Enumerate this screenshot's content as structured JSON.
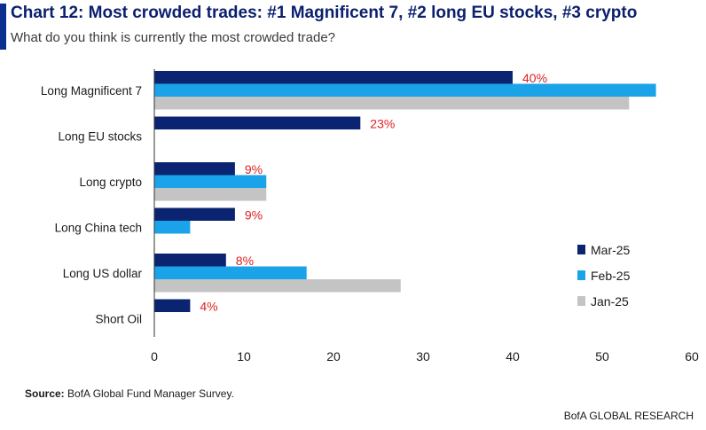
{
  "header": {
    "title": "Chart 12: Most crowded trades: #1 Magnificent 7, #2 long EU stocks, #3 crypto",
    "subtitle": "What do you think is currently the most crowded trade?"
  },
  "footer": {
    "source_label": "Source:",
    "source_text": " BofA Global Fund Manager Survey.",
    "credit": "BofA GLOBAL RESEARCH"
  },
  "chart_data": {
    "type": "bar",
    "orientation": "horizontal",
    "categories": [
      "Long Magnificent 7",
      "Long EU stocks",
      "Long crypto",
      "Long China tech",
      "Long US dollar",
      "Short Oil"
    ],
    "series": [
      {
        "name": "Mar-25",
        "color": "#0a2472",
        "values": [
          40,
          23,
          9,
          9,
          8,
          4
        ]
      },
      {
        "name": "Feb-25",
        "color": "#1aa3e8",
        "values": [
          56,
          null,
          12.5,
          4,
          17,
          null
        ]
      },
      {
        "name": "Jan-25",
        "color": "#c4c4c4",
        "values": [
          53,
          null,
          12.5,
          null,
          27.5,
          null
        ]
      }
    ],
    "data_labels": [
      "40%",
      "23%",
      "9%",
      "9%",
      "8%",
      "4%"
    ],
    "data_label_color": "#e02020",
    "x_ticks": [
      0,
      10,
      20,
      30,
      40,
      50,
      60
    ],
    "xlim": [
      0,
      60
    ],
    "grid": false,
    "legend_position": "right"
  }
}
